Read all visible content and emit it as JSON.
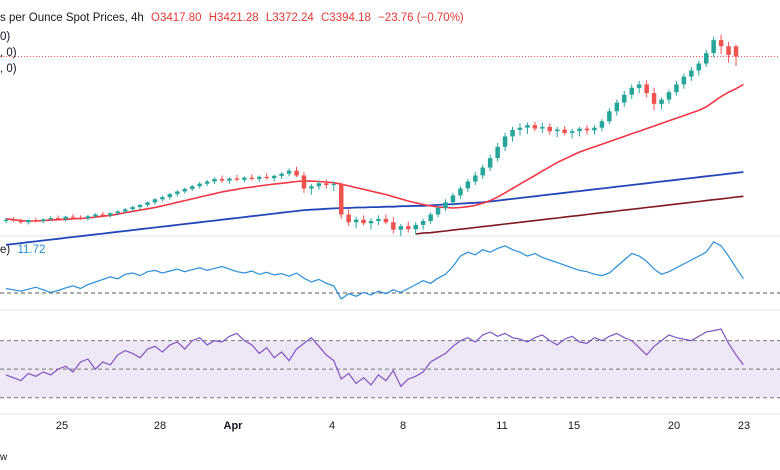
{
  "header": {
    "title_fragment": "s per Ounce Spot Prices, 4h",
    "open": "O3417.80",
    "high": "H3421.28",
    "low": "L3372.24",
    "close": "C3394.18",
    "change": "−23.76 (−0.70%)",
    "ma_line_1": "0)",
    "ma_line_2": ", 0)",
    "ma_line_3": ", 0)"
  },
  "atr_label": {
    "name_fragment": "e)",
    "value": "11.72"
  },
  "footer_fragment": "w",
  "colors": {
    "up": "#26a69a",
    "down": "#ef5350",
    "sma20": "#f23645",
    "sma100": "#2347b9",
    "sma200": "#801922",
    "atr": "#2a8fd8",
    "rsi": "#7e57c2",
    "rsi_band": "#ede7f6"
  },
  "chart_data": [
    {
      "type": "candlestick",
      "panel": "price",
      "x_ticks": [
        "25",
        "28",
        "Apr",
        "4",
        "8",
        "11",
        "15",
        "20",
        "23"
      ],
      "candles_ohlc": [
        [
          3015,
          3022,
          3010,
          3018
        ],
        [
          3018,
          3024,
          3013,
          3016
        ],
        [
          3016,
          3020,
          3008,
          3012
        ],
        [
          3012,
          3019,
          3007,
          3017
        ],
        [
          3017,
          3023,
          3012,
          3015
        ],
        [
          3015,
          3021,
          3010,
          3019
        ],
        [
          3019,
          3026,
          3015,
          3022
        ],
        [
          3022,
          3028,
          3016,
          3020
        ],
        [
          3020,
          3027,
          3015,
          3025
        ],
        [
          3025,
          3031,
          3019,
          3023
        ],
        [
          3023,
          3028,
          3017,
          3021
        ],
        [
          3021,
          3029,
          3016,
          3026
        ],
        [
          3026,
          3033,
          3022,
          3030
        ],
        [
          3030,
          3036,
          3024,
          3028
        ],
        [
          3028,
          3035,
          3023,
          3033
        ],
        [
          3033,
          3040,
          3028,
          3037
        ],
        [
          3037,
          3045,
          3032,
          3042
        ],
        [
          3042,
          3050,
          3037,
          3047
        ],
        [
          3047,
          3054,
          3041,
          3052
        ],
        [
          3052,
          3060,
          3047,
          3058
        ],
        [
          3058,
          3068,
          3053,
          3065
        ],
        [
          3065,
          3074,
          3060,
          3070
        ],
        [
          3070,
          3080,
          3064,
          3077
        ],
        [
          3077,
          3086,
          3071,
          3083
        ],
        [
          3083,
          3092,
          3078,
          3089
        ],
        [
          3089,
          3098,
          3084,
          3095
        ],
        [
          3095,
          3105,
          3090,
          3101
        ],
        [
          3101,
          3110,
          3095,
          3106
        ],
        [
          3106,
          3115,
          3100,
          3112
        ],
        [
          3112,
          3120,
          3103,
          3108
        ],
        [
          3108,
          3116,
          3101,
          3113
        ],
        [
          3113,
          3121,
          3106,
          3110
        ],
        [
          3110,
          3118,
          3104,
          3115
        ],
        [
          3115,
          3123,
          3108,
          3112
        ],
        [
          3112,
          3120,
          3105,
          3117
        ],
        [
          3117,
          3125,
          3110,
          3114
        ],
        [
          3114,
          3122,
          3106,
          3119
        ],
        [
          3119,
          3128,
          3112,
          3124
        ],
        [
          3124,
          3136,
          3118,
          3131
        ],
        [
          3131,
          3140,
          3116,
          3120
        ],
        [
          3120,
          3128,
          3080,
          3090
        ],
        [
          3090,
          3100,
          3076,
          3095
        ],
        [
          3095,
          3108,
          3087,
          3102
        ],
        [
          3102,
          3111,
          3090,
          3098
        ],
        [
          3098,
          3106,
          3084,
          3100
        ],
        [
          3100,
          3104,
          3020,
          3030
        ],
        [
          3030,
          3042,
          3004,
          3012
        ],
        [
          3012,
          3025,
          2998,
          3018
        ],
        [
          3018,
          3028,
          3005,
          3010
        ],
        [
          3010,
          3022,
          2995,
          3015
        ],
        [
          3015,
          3028,
          3006,
          3020
        ],
        [
          3020,
          3030,
          3008,
          3012
        ],
        [
          3012,
          3024,
          2986,
          2995
        ],
        [
          2995,
          3008,
          2980,
          3003
        ],
        [
          3003,
          3014,
          2988,
          2996
        ],
        [
          2996,
          3012,
          2984,
          3006
        ],
        [
          3006,
          3020,
          2995,
          3015
        ],
        [
          3015,
          3035,
          3008,
          3030
        ],
        [
          3030,
          3050,
          3024,
          3045
        ],
        [
          3045,
          3065,
          3038,
          3058
        ],
        [
          3058,
          3080,
          3050,
          3074
        ],
        [
          3074,
          3095,
          3066,
          3090
        ],
        [
          3090,
          3112,
          3082,
          3106
        ],
        [
          3106,
          3128,
          3098,
          3120
        ],
        [
          3120,
          3145,
          3112,
          3138
        ],
        [
          3138,
          3168,
          3130,
          3160
        ],
        [
          3160,
          3195,
          3152,
          3186
        ],
        [
          3186,
          3218,
          3176,
          3210
        ],
        [
          3210,
          3232,
          3198,
          3225
        ],
        [
          3225,
          3240,
          3212,
          3230
        ],
        [
          3230,
          3242,
          3216,
          3236
        ],
        [
          3236,
          3244,
          3222,
          3228
        ],
        [
          3228,
          3242,
          3218,
          3232
        ],
        [
          3232,
          3240,
          3214,
          3222
        ],
        [
          3222,
          3232,
          3208,
          3226
        ],
        [
          3226,
          3234,
          3212,
          3218
        ],
        [
          3218,
          3228,
          3205,
          3222
        ],
        [
          3222,
          3232,
          3210,
          3228
        ],
        [
          3228,
          3236,
          3214,
          3224
        ],
        [
          3224,
          3236,
          3214,
          3230
        ],
        [
          3230,
          3250,
          3222,
          3245
        ],
        [
          3245,
          3275,
          3238,
          3268
        ],
        [
          3268,
          3295,
          3258,
          3288
        ],
        [
          3288,
          3315,
          3278,
          3306
        ],
        [
          3306,
          3330,
          3296,
          3322
        ],
        [
          3322,
          3338,
          3310,
          3330
        ],
        [
          3330,
          3340,
          3300,
          3310
        ],
        [
          3310,
          3322,
          3270,
          3285
        ],
        [
          3285,
          3300,
          3272,
          3295
        ],
        [
          3295,
          3318,
          3286,
          3312
        ],
        [
          3312,
          3338,
          3304,
          3330
        ],
        [
          3330,
          3355,
          3320,
          3348
        ],
        [
          3348,
          3370,
          3338,
          3362
        ],
        [
          3362,
          3385,
          3350,
          3378
        ],
        [
          3378,
          3410,
          3370,
          3402
        ],
        [
          3402,
          3440,
          3392,
          3432
        ],
        [
          3432,
          3445,
          3400,
          3418
        ],
        [
          3418,
          3428,
          3380,
          3398
        ],
        [
          3417.8,
          3421.28,
          3372.24,
          3394.18
        ]
      ],
      "sma20": [
        3020,
        3018,
        3016,
        3015,
        3015,
        3016,
        3017,
        3018,
        3019,
        3020,
        3021,
        3022,
        3024,
        3026,
        3028,
        3031,
        3034,
        3037,
        3040,
        3043,
        3046,
        3050,
        3054,
        3058,
        3062,
        3066,
        3070,
        3074,
        3078,
        3082,
        3085,
        3088,
        3091,
        3093,
        3096,
        3098,
        3100,
        3102,
        3104,
        3106,
        3107,
        3107,
        3106,
        3105,
        3103,
        3100,
        3096,
        3092,
        3088,
        3084,
        3080,
        3076,
        3071,
        3066,
        3061,
        3057,
        3053,
        3050,
        3047,
        3046,
        3045,
        3046,
        3048,
        3051,
        3056,
        3062,
        3070,
        3080,
        3090,
        3100,
        3110,
        3120,
        3130,
        3140,
        3150,
        3158,
        3166,
        3174,
        3180,
        3186,
        3192,
        3198,
        3204,
        3210,
        3216,
        3222,
        3228,
        3234,
        3240,
        3246,
        3252,
        3258,
        3264,
        3270,
        3278,
        3290,
        3302,
        3312,
        3320,
        3330
      ],
      "sma100": [
        2960,
        2962,
        2964,
        2966,
        2968,
        2970,
        2972,
        2974,
        2976,
        2978,
        2980,
        2982,
        2984,
        2986,
        2988,
        2990,
        2992,
        2994,
        2996,
        2998,
        3000,
        3002,
        3004,
        3006,
        3008,
        3010,
        3012,
        3014,
        3016,
        3018,
        3020,
        3022,
        3024,
        3026,
        3028,
        3030,
        3032,
        3034,
        3036,
        3038,
        3040,
        3041,
        3042,
        3043,
        3044,
        3045,
        3045,
        3046,
        3046,
        3047,
        3047,
        3048,
        3048,
        3049,
        3049,
        3050,
        3050,
        3051,
        3052,
        3053,
        3054,
        3055,
        3056,
        3057,
        3058,
        3060,
        3062,
        3064,
        3066,
        3068,
        3070,
        3072,
        3074,
        3076,
        3078,
        3080,
        3082,
        3084,
        3086,
        3088,
        3090,
        3092,
        3094,
        3096,
        3098,
        3100,
        3102,
        3104,
        3106,
        3108,
        3110,
        3112,
        3114,
        3116,
        3118,
        3120,
        3122,
        3124,
        3126,
        3128
      ],
      "sma200": [
        null,
        null,
        null,
        null,
        null,
        null,
        null,
        null,
        null,
        null,
        null,
        null,
        null,
        null,
        null,
        null,
        null,
        null,
        null,
        null,
        null,
        null,
        null,
        null,
        null,
        null,
        null,
        null,
        null,
        null,
        null,
        null,
        null,
        null,
        null,
        null,
        null,
        null,
        null,
        null,
        null,
        null,
        null,
        null,
        null,
        null,
        null,
        null,
        null,
        null,
        null,
        null,
        null,
        null,
        null,
        2985,
        2987,
        2988,
        2990,
        2992,
        2994,
        2996,
        2998,
        3000,
        3002,
        3004,
        3006,
        3008,
        3010,
        3012,
        3014,
        3016,
        3018,
        3020,
        3022,
        3024,
        3026,
        3028,
        3030,
        3032,
        3034,
        3036,
        3038,
        3040,
        3042,
        3044,
        3046,
        3048,
        3050,
        3052,
        3054,
        3056,
        3058,
        3060,
        3062,
        3064,
        3066,
        3068,
        3070,
        3072
      ],
      "last_price_line": 3394.18
    },
    {
      "type": "line",
      "panel": "atr",
      "series": [
        {
          "name": "",
          "values": [
            10.2,
            10.0,
            9.8,
            10.1,
            10.4,
            10.0,
            9.6,
            9.9,
            10.3,
            10.6,
            10.2,
            10.8,
            11.2,
            11.6,
            12.0,
            11.7,
            12.4,
            12.6,
            12.2,
            12.8,
            13.0,
            12.6,
            12.9,
            13.2,
            12.8,
            13.1,
            13.4,
            13.0,
            13.3,
            13.6,
            13.2,
            12.8,
            12.6,
            12.9,
            12.4,
            12.7,
            12.3,
            12.5,
            12.1,
            12.6,
            11.8,
            11.2,
            11.6,
            11.0,
            10.6,
            8.6,
            9.4,
            9.0,
            9.6,
            9.2,
            9.8,
            9.4,
            10.0,
            9.6,
            10.2,
            10.8,
            11.4,
            11.0,
            11.8,
            12.4,
            13.6,
            15.2,
            15.8,
            15.4,
            16.2,
            15.8,
            16.4,
            16.8,
            16.2,
            15.8,
            15.2,
            15.6,
            15.0,
            14.6,
            14.2,
            13.8,
            13.4,
            13.0,
            12.8,
            12.4,
            12.2,
            12.6,
            13.6,
            14.6,
            15.6,
            15.2,
            14.4,
            13.2,
            12.4,
            12.8,
            13.4,
            14.0,
            14.6,
            15.2,
            15.8,
            17.4,
            16.8,
            15.2,
            13.4,
            11.72
          ]
        }
      ],
      "reference_line": 9.5
    },
    {
      "type": "line",
      "panel": "rsi",
      "series": [
        {
          "name": "",
          "values": [
            46,
            44,
            42,
            47,
            45,
            48,
            46,
            50,
            52,
            48,
            55,
            57,
            50,
            55,
            53,
            60,
            63,
            61,
            58,
            64,
            66,
            62,
            67,
            69,
            64,
            70,
            72,
            67,
            70,
            69,
            73,
            75,
            70,
            67,
            61,
            65,
            58,
            62,
            56,
            64,
            68,
            72,
            66,
            60,
            56,
            43,
            47,
            40,
            44,
            39,
            46,
            42,
            49,
            38,
            43,
            45,
            48,
            55,
            58,
            61,
            66,
            70,
            72,
            69,
            74,
            76,
            73,
            75,
            72,
            71,
            69,
            72,
            74,
            70,
            67,
            71,
            73,
            69,
            68,
            72,
            70,
            73,
            75,
            72,
            70,
            65,
            60,
            66,
            70,
            74,
            72,
            71,
            70,
            73,
            76,
            77,
            78,
            68,
            60,
            53
          ]
        }
      ],
      "ylim": [
        20,
        90
      ],
      "band": [
        30,
        70
      ],
      "reference_line": 50
    }
  ]
}
